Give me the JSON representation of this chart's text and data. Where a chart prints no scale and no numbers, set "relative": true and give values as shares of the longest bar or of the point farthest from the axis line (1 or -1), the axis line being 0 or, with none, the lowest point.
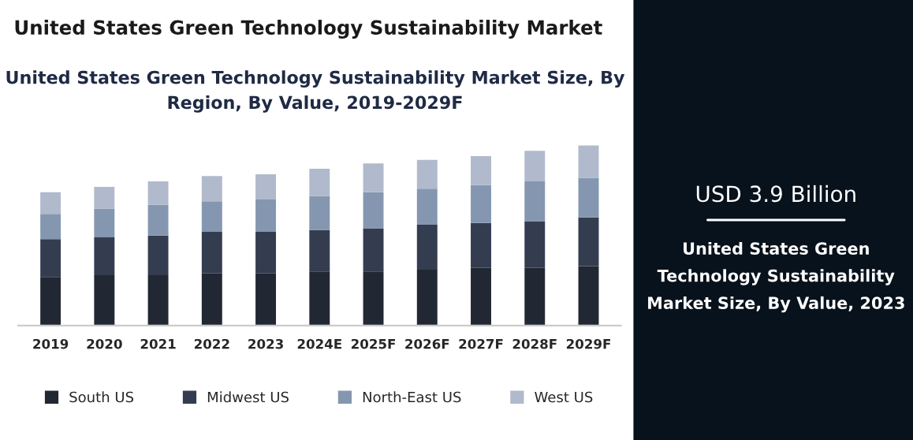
{
  "chart_data": {
    "type": "bar",
    "stacked": true,
    "relative": true,
    "title": "United States Green Technology Sustainability Market",
    "subtitle": "United States Green Technology Sustainability Market Size, By Region, By Value, 2019-2029F",
    "categories": [
      "2019",
      "2020",
      "2021",
      "2022",
      "2023",
      "2024E",
      "2025F",
      "2026F",
      "2027F",
      "2028F",
      "2029F"
    ],
    "series": [
      {
        "name": "South US",
        "color": "#222833",
        "values": [
          0.27,
          0.28,
          0.28,
          0.29,
          0.29,
          0.3,
          0.3,
          0.31,
          0.32,
          0.32,
          0.33
        ]
      },
      {
        "name": "Midwest US",
        "color": "#343d50",
        "values": [
          0.21,
          0.21,
          0.22,
          0.23,
          0.23,
          0.23,
          0.24,
          0.25,
          0.25,
          0.26,
          0.27
        ]
      },
      {
        "name": "North-East US",
        "color": "#8597b0",
        "values": [
          0.14,
          0.16,
          0.17,
          0.17,
          0.18,
          0.19,
          0.2,
          0.2,
          0.21,
          0.22,
          0.22
        ]
      },
      {
        "name": "West US",
        "color": "#b0bacc",
        "values": [
          0.12,
          0.12,
          0.13,
          0.14,
          0.14,
          0.15,
          0.16,
          0.16,
          0.16,
          0.17,
          0.18
        ]
      }
    ],
    "legend": "bottom",
    "grid": false,
    "annotations": [
      "USD 3.9 Billion",
      "United States Green Technology Sustainability Market Size, By Value, 2023"
    ]
  }
}
